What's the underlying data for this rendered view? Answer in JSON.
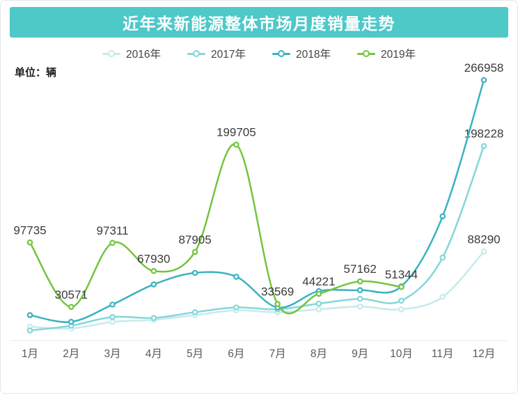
{
  "colors": {
    "header_bg": "#4fc8c8",
    "header_text": "#ffffff",
    "unit_text": "#1f1f1f",
    "value_label": "#3a3a3a",
    "axis_label": "#5a5a5a",
    "axis_line": "#ececec"
  },
  "chart_data": {
    "type": "line",
    "title": "近年来新能源整体市场月度销量走势",
    "unit_label": "单位：辆",
    "x_categories": [
      "1月",
      "2月",
      "3月",
      "4月",
      "5月",
      "6月",
      "7月",
      "8月",
      "9月",
      "10月",
      "11月",
      "12月"
    ],
    "grid": false,
    "y_axis": "hidden",
    "ylim": [
      0,
      270000
    ],
    "legend_position": "top-center",
    "smooth": true,
    "series": [
      {
        "name": "2016年",
        "color": "#c8eaea",
        "values": [
          10000,
          8000,
          15000,
          17000,
          22000,
          27000,
          25000,
          28000,
          31000,
          28000,
          41000,
          88290
        ],
        "label_indices": [
          11
        ]
      },
      {
        "name": "2017年",
        "color": "#83d7d9",
        "values": [
          6000,
          11000,
          20000,
          19000,
          25000,
          30000,
          28000,
          34000,
          39000,
          37000,
          82000,
          198228
        ],
        "label_indices": [
          11
        ]
      },
      {
        "name": "2018年",
        "color": "#39b2c1",
        "values": [
          22000,
          15000,
          33000,
          54000,
          66000,
          62000,
          30000,
          47000,
          48000,
          52000,
          125000,
          266958
        ],
        "label_indices": [
          11
        ]
      },
      {
        "name": "2019年",
        "color": "#72c53e",
        "values": [
          97735,
          30571,
          97311,
          67930,
          87905,
          199705,
          33569,
          44221,
          57162,
          51344
        ],
        "label_indices": [
          0,
          1,
          2,
          3,
          4,
          5,
          6,
          7,
          8,
          9
        ]
      }
    ]
  }
}
